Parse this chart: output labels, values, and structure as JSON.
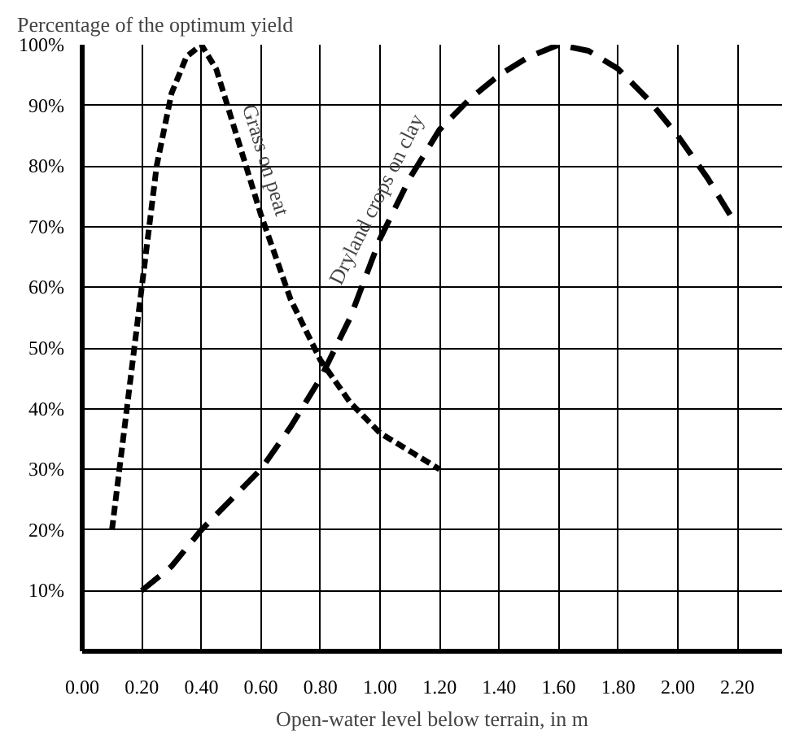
{
  "chart_data": {
    "type": "line",
    "ylabel": "Percentage of the optimum yield",
    "xlabel": "Open-water level below terrain, in m",
    "xlim": [
      0,
      2.35
    ],
    "ylim": [
      0,
      100
    ],
    "xticks": [
      {
        "value": 0,
        "label": "0.00"
      },
      {
        "value": 0.2,
        "label": "0.20"
      },
      {
        "value": 0.4,
        "label": "0.40"
      },
      {
        "value": 0.6,
        "label": "0.60"
      },
      {
        "value": 0.8,
        "label": "0.80"
      },
      {
        "value": 1.0,
        "label": "1.00"
      },
      {
        "value": 1.2,
        "label": "1.20"
      },
      {
        "value": 1.4,
        "label": "1.40"
      },
      {
        "value": 1.6,
        "label": "1.60"
      },
      {
        "value": 1.8,
        "label": "1.80"
      },
      {
        "value": 2.0,
        "label": "2.00"
      },
      {
        "value": 2.2,
        "label": "2.20"
      }
    ],
    "yticks": [
      {
        "value": 0,
        "label": null
      },
      {
        "value": 10,
        "label": "10%"
      },
      {
        "value": 20,
        "label": "20%"
      },
      {
        "value": 30,
        "label": "30%"
      },
      {
        "value": 40,
        "label": "40%"
      },
      {
        "value": 50,
        "label": "50%"
      },
      {
        "value": 60,
        "label": "60%"
      },
      {
        "value": 70,
        "label": "70%"
      },
      {
        "value": 80,
        "label": "80%"
      },
      {
        "value": 90,
        "label": "90%"
      },
      {
        "value": 100,
        "label": "100%"
      }
    ],
    "grid": true,
    "marker": "none",
    "series": [
      {
        "name": "Grass on peat",
        "color": "#000000",
        "line_style": "dotted",
        "x": [
          0.1,
          0.15,
          0.2,
          0.25,
          0.3,
          0.35,
          0.4,
          0.45,
          0.5,
          0.6,
          0.7,
          0.8,
          0.9,
          1.0,
          1.1,
          1.2
        ],
        "values": [
          20,
          40,
          60,
          80,
          92,
          98,
          100,
          96,
          88,
          72,
          58,
          48,
          41,
          36,
          33,
          30
        ]
      },
      {
        "name": "Dryland crops on clay",
        "color": "#000000",
        "line_style": "dashed",
        "x": [
          0.2,
          0.3,
          0.4,
          0.5,
          0.6,
          0.7,
          0.8,
          0.9,
          1.0,
          1.1,
          1.2,
          1.3,
          1.4,
          1.5,
          1.6,
          1.7,
          1.8,
          1.9,
          2.0,
          2.1,
          2.2
        ],
        "values": [
          10,
          14,
          20,
          25,
          30,
          37,
          45,
          55,
          68,
          78,
          86,
          91,
          95,
          98,
          100,
          99,
          96,
          91,
          85,
          78,
          70
        ]
      }
    ]
  }
}
